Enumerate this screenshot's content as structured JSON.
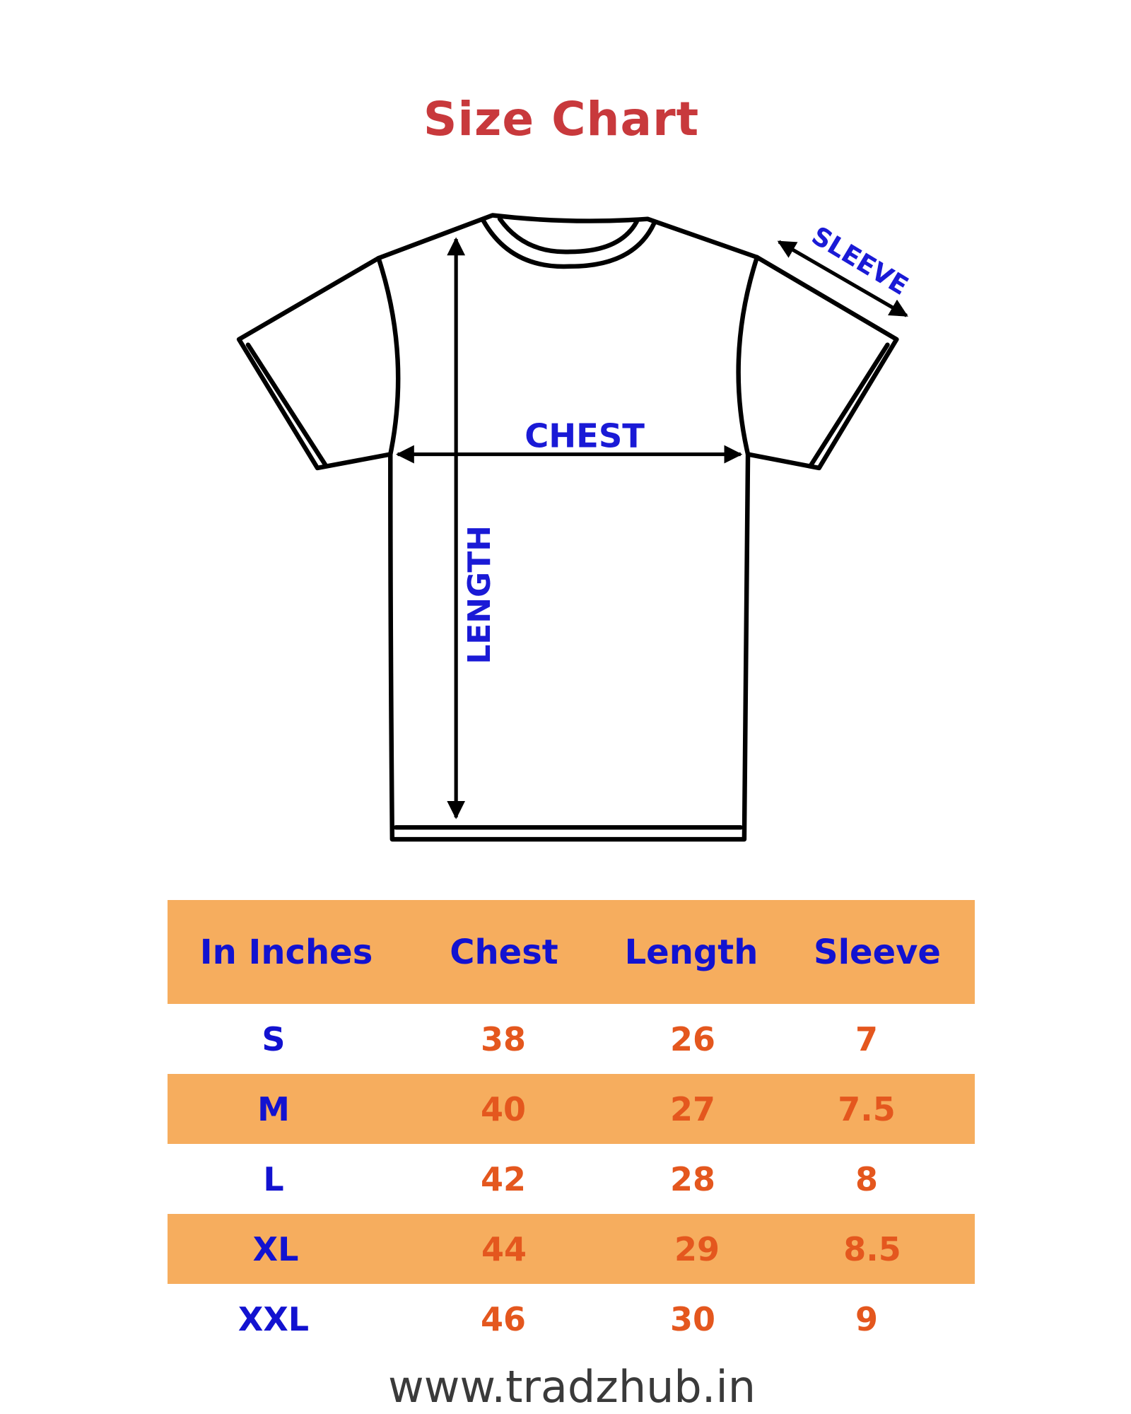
{
  "title": "Size Chart",
  "diagram": {
    "labels": {
      "chest": "CHEST",
      "length": "LENGTH",
      "sleeve": "SLEEVE"
    }
  },
  "table": {
    "headers": [
      "In Inches",
      "Chest",
      "Length",
      "Sleeve"
    ],
    "rows": [
      [
        "S",
        "38",
        "26",
        "7"
      ],
      [
        "M",
        "40",
        "27",
        "7.5"
      ],
      [
        "L",
        "42",
        "28",
        "8"
      ],
      [
        "XL",
        "44",
        "29",
        "8.5"
      ],
      [
        "XXL",
        "46",
        "30",
        "9"
      ]
    ]
  },
  "footer": "www.tradzhub.in",
  "colors": {
    "title": "#c8393c",
    "label_blue": "#1212d0",
    "value_orange": "#e4571e",
    "band": "#f6ad5e"
  }
}
